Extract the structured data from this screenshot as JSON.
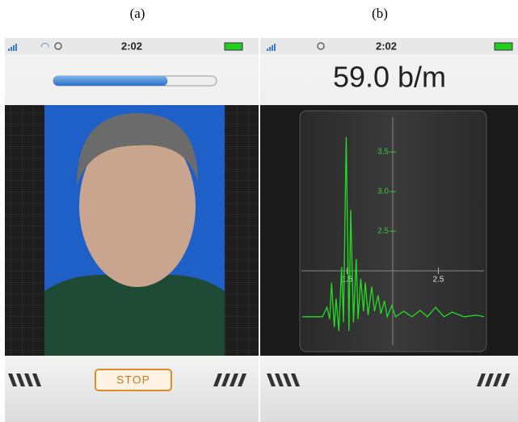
{
  "labels": [
    "(a)",
    "(b)"
  ],
  "left": {
    "time": "2:02",
    "progress": 70,
    "button": "STOP"
  },
  "right": {
    "time": "2:02",
    "reading": "59.0 b/m"
  },
  "chart_data": {
    "type": "line",
    "x": [
      1.01,
      1.23,
      1.28,
      1.31,
      1.33,
      1.36,
      1.38,
      1.41,
      1.44,
      1.46,
      1.49,
      1.52,
      1.54,
      1.57,
      1.6,
      1.62,
      1.65,
      1.68,
      1.7,
      1.73,
      1.77,
      1.8,
      1.84,
      1.87,
      1.91,
      1.94,
      1.99,
      2.03,
      2.12,
      2.21,
      2.3,
      2.38,
      2.47,
      2.56,
      2.65,
      2.78,
      2.92,
      3.0
    ],
    "series": [
      {
        "color": "#22dd22",
        "values": [
          1.42,
          1.42,
          1.54,
          1.39,
          1.85,
          1.29,
          1.65,
          1.24,
          2.05,
          1.35,
          3.69,
          1.24,
          2.77,
          1.35,
          2.15,
          1.39,
          1.9,
          1.49,
          1.85,
          1.44,
          1.8,
          1.49,
          1.69,
          1.46,
          1.62,
          1.42,
          1.56,
          1.42,
          1.49,
          1.42,
          1.5,
          1.42,
          1.54,
          1.42,
          1.48,
          1.42,
          1.44,
          1.42
        ]
      }
    ],
    "xlim": [
      1.0,
      3.0
    ],
    "ylim": [
      1.0,
      4.0
    ],
    "xticks": [
      1.5,
      2.5
    ],
    "yticks": [
      2.5,
      {
        "value": 3,
        "label": "3.0"
      },
      3.5
    ],
    "axes_at": [
      2,
      2
    ]
  }
}
